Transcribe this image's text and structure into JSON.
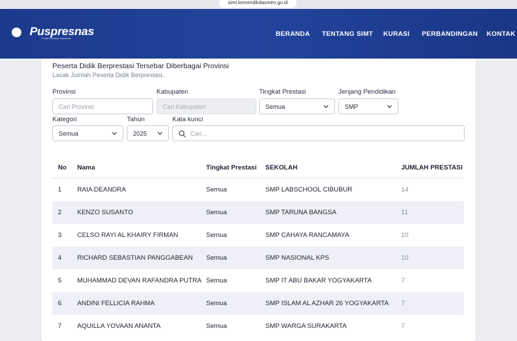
{
  "browser": {
    "url": "simt.kemendikdasmen.go.id"
  },
  "header": {
    "brand": "Puspresnas",
    "brand_subtitle": "Pusat Prestasi Nasional",
    "nav": [
      "BERANDA",
      "TENTANG SIMT",
      "KURASI",
      "PERBANDINGAN",
      "KONTAK"
    ]
  },
  "card": {
    "title": "Peserta Didik Berprestasi Tersebar Diberbagai Provinsi",
    "subtitle": "Lacak Jumlah Peserta Didik Berprestasi."
  },
  "filters": {
    "provinsi": {
      "label": "Provinsi",
      "placeholder": "Cari Provinsi"
    },
    "kabupaten": {
      "label": "Kabupaten",
      "placeholder": "Cari Kabupaten"
    },
    "tingkat": {
      "label": "Tingkat Prestasi",
      "value": "Semua"
    },
    "jenjang": {
      "label": "Jenjang Pendidikan",
      "value": "SMP"
    },
    "kategori": {
      "label": "Kategori",
      "value": "Semua"
    },
    "tahun": {
      "label": "Tahun",
      "value": "2025"
    },
    "kata_kunci": {
      "label": "Kata kunci",
      "placeholder": "Cari..."
    }
  },
  "table": {
    "headers": [
      "No",
      "Nama",
      "Tingkat Prestasi",
      "SEKOLAH",
      "JUMLAH PRESTASI"
    ],
    "rows": [
      [
        1,
        "RAIA DEANDRA",
        "Semua",
        "SMP LABSCHOOL CIBUBUR",
        14
      ],
      [
        2,
        "KENZO SUSANTO",
        "Semua",
        "SMP TARUNA BANGSA",
        11
      ],
      [
        3,
        "CELSO RAYI AL KHAIRY FIRMAN",
        "Semua",
        "SMP CAHAYA RANCAMAYA",
        10
      ],
      [
        4,
        "RICHARD SEBASTIAN PANGGABEAN",
        "Semua",
        "SMP NASIONAL KPS",
        10
      ],
      [
        5,
        "MUHAMMAD DEVAN RAFANDRA PUTRA",
        "Semua",
        "SMP IT ABU BAKAR YOGYAKARTA",
        7
      ],
      [
        6,
        "ANDINI FELLICIA RAHMA",
        "Semua",
        "SMP ISLAM AL AZHAR 26 YOGYAKARTA",
        7
      ],
      [
        7,
        "AQUILLA YOVAAN ANANTA",
        "Semua",
        "SMP WARGA SURAKARTA",
        7
      ]
    ]
  }
}
